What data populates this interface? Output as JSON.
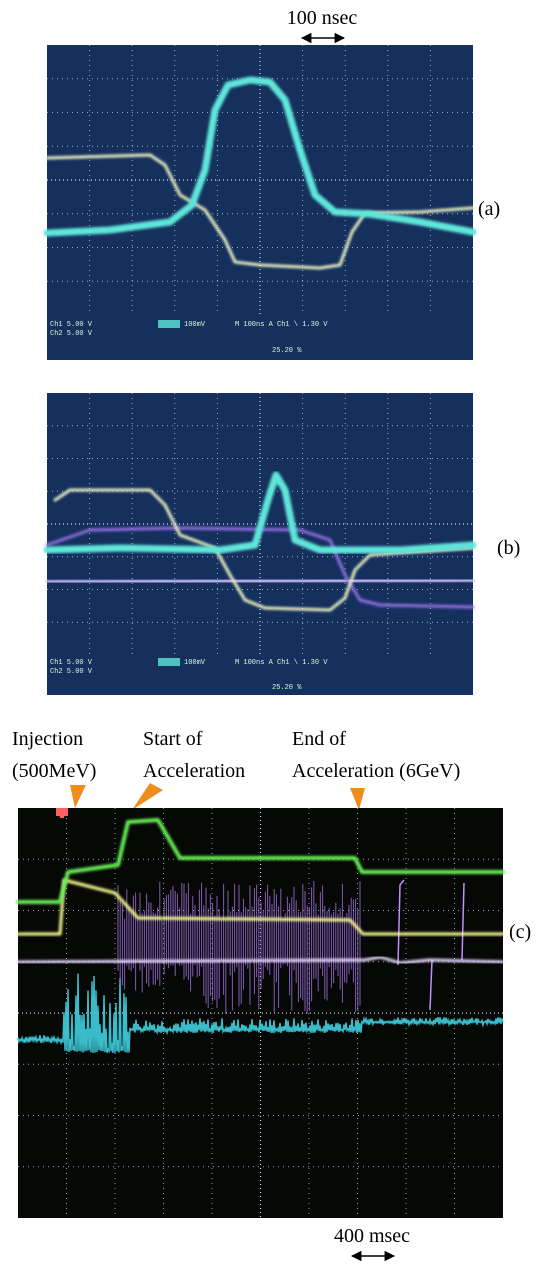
{
  "labels": {
    "top_scale": "100 nsec",
    "a": "(a)",
    "b": "(b)",
    "c": "(c)",
    "injection": [
      "Injection",
      "(500MeV)"
    ],
    "start": [
      "Start of",
      "Acceleration"
    ],
    "end": [
      "End of",
      "Acceleration (6GeV)"
    ],
    "bottom_scale": "400 msec"
  },
  "scope_text": {
    "ch1": "Ch1  5.00 V",
    "ch2": "Ch2  5.00 V",
    "ch3": "100mV",
    "timebase": "M 100ns  A  Ch1  \\  1.30 V",
    "trigger": "25.20 %"
  }
}
